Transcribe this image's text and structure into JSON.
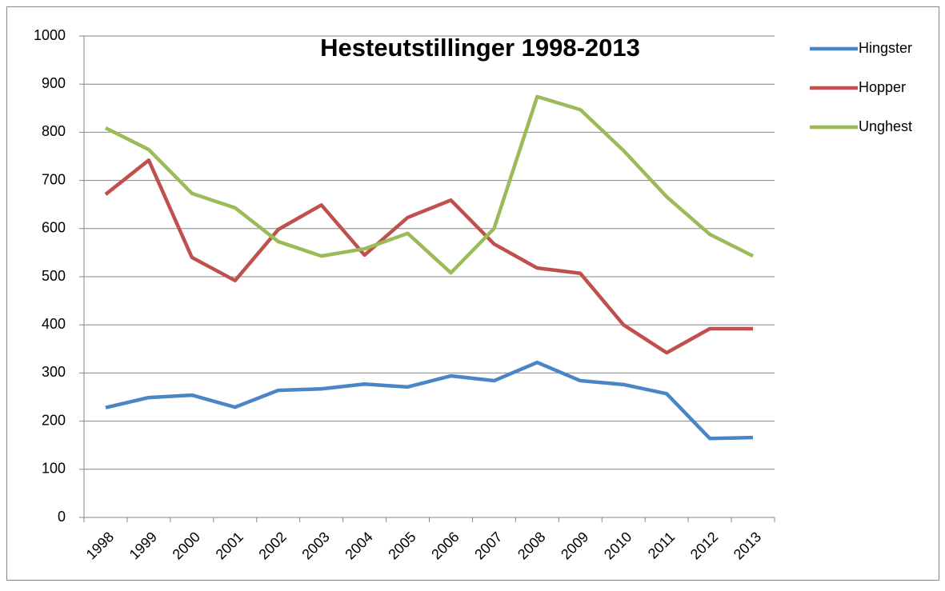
{
  "chart_data": {
    "type": "line",
    "title": "Hesteutstillinger 1998-2013",
    "categories": [
      "1998",
      "1999",
      "2000",
      "2001",
      "2002",
      "2003",
      "2004",
      "2005",
      "2006",
      "2007",
      "2008",
      "2009",
      "2010",
      "2011",
      "2012",
      "2013"
    ],
    "series": [
      {
        "name": "Hingster",
        "color": "#4a86c5",
        "values": [
          228,
          249,
          254,
          229,
          264,
          267,
          277,
          271,
          294,
          284,
          322,
          284,
          276,
          257,
          164,
          166
        ]
      },
      {
        "name": "Hopper",
        "color": "#c0504d",
        "values": [
          671,
          742,
          540,
          492,
          598,
          649,
          545,
          623,
          659,
          568,
          518,
          507,
          400,
          342,
          392,
          392
        ]
      },
      {
        "name": "Unghest",
        "color": "#9bbb59",
        "values": [
          809,
          764,
          673,
          643,
          573,
          543,
          558,
          590,
          508,
          600,
          874,
          847,
          762,
          666,
          588,
          543
        ]
      }
    ],
    "ylim": [
      0,
      1000
    ],
    "yticks": [
      0,
      100,
      200,
      300,
      400,
      500,
      600,
      700,
      800,
      900,
      1000
    ],
    "grid": true
  }
}
